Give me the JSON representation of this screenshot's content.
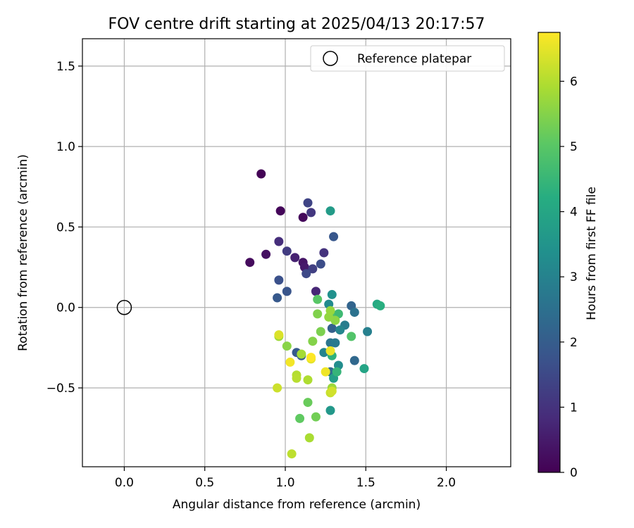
{
  "chart_data": {
    "type": "scatter",
    "title": "FOV centre drift starting at 2025/04/13 20:17:57",
    "xlabel": "Angular distance from reference (arcmin)",
    "ylabel": "Rotation from reference (arcmin)",
    "xlim": [
      -0.26,
      2.4
    ],
    "ylim": [
      -0.99,
      1.67
    ],
    "xticks": [
      0.0,
      0.5,
      1.0,
      1.5,
      2.0
    ],
    "xtick_labels": [
      "0.0",
      "0.5",
      "1.0",
      "1.5",
      "2.0"
    ],
    "yticks": [
      -0.5,
      0.0,
      0.5,
      1.0,
      1.5
    ],
    "ytick_labels": [
      "−0.5",
      "0.0",
      "0.5",
      "1.0",
      "1.5"
    ],
    "grid": true,
    "legend": {
      "position": "top-right",
      "entries": [
        {
          "label": "Reference platepar",
          "marker": "open-circle"
        }
      ]
    },
    "reference_point": {
      "x": 0.0,
      "y": 0.0
    },
    "colorbar": {
      "label": "Hours from first FF file",
      "colormap": "viridis",
      "range": [
        0,
        6.75
      ],
      "ticks": [
        0,
        1,
        2,
        3,
        4,
        5,
        6
      ],
      "tick_labels": [
        "0",
        "1",
        "2",
        "3",
        "4",
        "5",
        "6"
      ]
    },
    "points": [
      {
        "x": 0.85,
        "y": 0.83,
        "hours": 0.05
      },
      {
        "x": 0.97,
        "y": 0.6,
        "hours": 0.1
      },
      {
        "x": 1.11,
        "y": 0.56,
        "hours": 0.15
      },
      {
        "x": 0.78,
        "y": 0.28,
        "hours": 0.2
      },
      {
        "x": 0.88,
        "y": 0.33,
        "hours": 0.3
      },
      {
        "x": 1.11,
        "y": 0.28,
        "hours": 0.4
      },
      {
        "x": 1.12,
        "y": 0.25,
        "hours": 0.5
      },
      {
        "x": 1.06,
        "y": 0.31,
        "hours": 0.65
      },
      {
        "x": 1.19,
        "y": 0.1,
        "hours": 0.75
      },
      {
        "x": 0.96,
        "y": 0.41,
        "hours": 0.9
      },
      {
        "x": 1.24,
        "y": 0.34,
        "hours": 1.0
      },
      {
        "x": 1.16,
        "y": 0.59,
        "hours": 1.1
      },
      {
        "x": 1.01,
        "y": 0.35,
        "hours": 1.2
      },
      {
        "x": 1.17,
        "y": 0.24,
        "hours": 1.3
      },
      {
        "x": 1.14,
        "y": 0.65,
        "hours": 1.4
      },
      {
        "x": 1.13,
        "y": 0.21,
        "hours": 1.5
      },
      {
        "x": 1.22,
        "y": 0.27,
        "hours": 1.6
      },
      {
        "x": 0.96,
        "y": 0.17,
        "hours": 1.7
      },
      {
        "x": 1.01,
        "y": 0.1,
        "hours": 1.8
      },
      {
        "x": 1.3,
        "y": 0.44,
        "hours": 1.85
      },
      {
        "x": 0.95,
        "y": 0.06,
        "hours": 1.9
      },
      {
        "x": 1.07,
        "y": -0.28,
        "hours": 1.95
      },
      {
        "x": 1.1,
        "y": -0.3,
        "hours": 2.0
      },
      {
        "x": 1.29,
        "y": -0.13,
        "hours": 2.1
      },
      {
        "x": 1.41,
        "y": 0.01,
        "hours": 2.2
      },
      {
        "x": 1.43,
        "y": -0.33,
        "hours": 2.3
      },
      {
        "x": 1.28,
        "y": -0.4,
        "hours": 2.4
      },
      {
        "x": 1.43,
        "y": -0.03,
        "hours": 2.55
      },
      {
        "x": 1.28,
        "y": -0.22,
        "hours": 2.65
      },
      {
        "x": 1.31,
        "y": -0.22,
        "hours": 2.75
      },
      {
        "x": 1.37,
        "y": -0.11,
        "hours": 2.85
      },
      {
        "x": 1.51,
        "y": -0.15,
        "hours": 2.95
      },
      {
        "x": 1.24,
        "y": -0.28,
        "hours": 3.05
      },
      {
        "x": 1.34,
        "y": -0.14,
        "hours": 3.1
      },
      {
        "x": 1.27,
        "y": 0.02,
        "hours": 3.2
      },
      {
        "x": 1.33,
        "y": -0.36,
        "hours": 3.3
      },
      {
        "x": 1.29,
        "y": 0.08,
        "hours": 3.4
      },
      {
        "x": 1.28,
        "y": -0.64,
        "hours": 3.6
      },
      {
        "x": 1.28,
        "y": 0.6,
        "hours": 3.7
      },
      {
        "x": 1.3,
        "y": -0.44,
        "hours": 3.8
      },
      {
        "x": 1.49,
        "y": -0.38,
        "hours": 3.95
      },
      {
        "x": 1.57,
        "y": 0.02,
        "hours": 4.1
      },
      {
        "x": 1.59,
        "y": 0.01,
        "hours": 4.25
      },
      {
        "x": 1.29,
        "y": -0.3,
        "hours": 4.35
      },
      {
        "x": 1.32,
        "y": -0.4,
        "hours": 4.45
      },
      {
        "x": 1.33,
        "y": -0.04,
        "hours": 4.6
      },
      {
        "x": 1.28,
        "y": -0.05,
        "hours": 4.8
      },
      {
        "x": 1.41,
        "y": -0.18,
        "hours": 4.9
      },
      {
        "x": 1.2,
        "y": 0.05,
        "hours": 5.0
      },
      {
        "x": 1.09,
        "y": -0.69,
        "hours": 5.1
      },
      {
        "x": 1.14,
        "y": -0.59,
        "hours": 5.2
      },
      {
        "x": 1.19,
        "y": -0.68,
        "hours": 5.3
      },
      {
        "x": 1.22,
        "y": -0.15,
        "hours": 5.4
      },
      {
        "x": 1.2,
        "y": -0.04,
        "hours": 5.45
      },
      {
        "x": 1.17,
        "y": -0.21,
        "hours": 5.5
      },
      {
        "x": 1.01,
        "y": -0.24,
        "hours": 5.55
      },
      {
        "x": 1.31,
        "y": -0.08,
        "hours": 5.6
      },
      {
        "x": 1.27,
        "y": -0.06,
        "hours": 5.65
      },
      {
        "x": 1.28,
        "y": -0.02,
        "hours": 5.7
      },
      {
        "x": 1.29,
        "y": -0.5,
        "hours": 5.75
      },
      {
        "x": 0.96,
        "y": -0.18,
        "hours": 5.8
      },
      {
        "x": 1.1,
        "y": -0.29,
        "hours": 5.85
      },
      {
        "x": 1.15,
        "y": -0.81,
        "hours": 5.9
      },
      {
        "x": 1.14,
        "y": -0.45,
        "hours": 5.95
      },
      {
        "x": 1.07,
        "y": -0.42,
        "hours": 6.0
      },
      {
        "x": 1.07,
        "y": -0.44,
        "hours": 6.05
      },
      {
        "x": 1.04,
        "y": -0.91,
        "hours": 6.1
      },
      {
        "x": 1.28,
        "y": -0.53,
        "hours": 6.2
      },
      {
        "x": 0.95,
        "y": -0.5,
        "hours": 6.25
      },
      {
        "x": 1.29,
        "y": -0.52,
        "hours": 6.3
      },
      {
        "x": 0.96,
        "y": -0.17,
        "hours": 6.4
      },
      {
        "x": 1.16,
        "y": -0.32,
        "hours": 6.5
      },
      {
        "x": 1.28,
        "y": -0.27,
        "hours": 6.55
      },
      {
        "x": 1.25,
        "y": -0.4,
        "hours": 6.6
      },
      {
        "x": 1.03,
        "y": -0.34,
        "hours": 6.65
      },
      {
        "x": 1.16,
        "y": -0.31,
        "hours": 6.75
      }
    ]
  }
}
